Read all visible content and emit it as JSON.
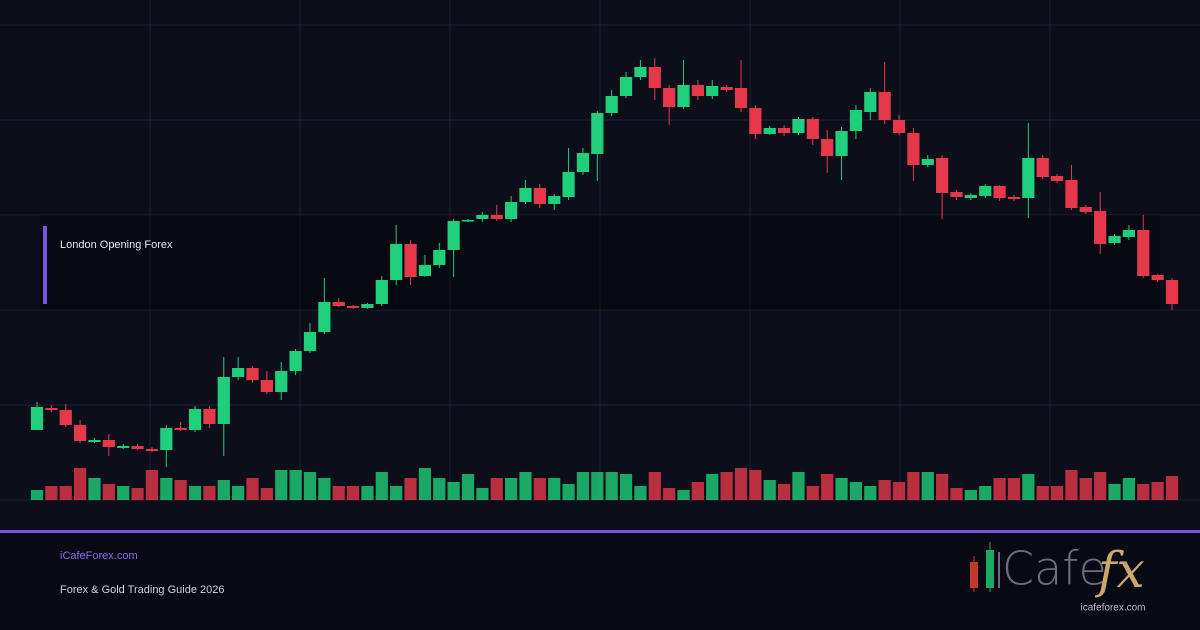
{
  "chart_data": {
    "type": "candlestick",
    "annotation": "London Opening Forex",
    "up_color": "#1fcf7b",
    "down_color": "#e5384a",
    "ylim": [
      0,
      475
    ],
    "volume_lim": [
      0,
      475
    ],
    "open": [
      70,
      92,
      90,
      75,
      58,
      60,
      52,
      54,
      51,
      50,
      72,
      70,
      91,
      76,
      123,
      132,
      120,
      108,
      129,
      149,
      168,
      198,
      194,
      192,
      196,
      220,
      256,
      224,
      235,
      250,
      279,
      281,
      285,
      281,
      298,
      312,
      296,
      303,
      328,
      346,
      387,
      404,
      423,
      433,
      412,
      393,
      415,
      404,
      413,
      412,
      392,
      366,
      372,
      367,
      381,
      361,
      344,
      369,
      388,
      408,
      380,
      367,
      335,
      342,
      308,
      302,
      304,
      314,
      303,
      302,
      342,
      324,
      320,
      293,
      289,
      257,
      263,
      270,
      225,
      220
    ],
    "high": [
      98,
      95,
      96,
      80,
      62,
      66,
      56,
      56,
      53,
      75,
      78,
      94,
      94,
      143,
      143,
      134,
      129,
      138,
      151,
      177,
      222,
      202,
      195,
      197,
      224,
      275,
      260,
      245,
      257,
      281,
      281,
      288,
      295,
      304,
      320,
      316,
      306,
      352,
      352,
      389,
      410,
      428,
      440,
      442,
      415,
      440,
      420,
      420,
      415,
      440,
      395,
      374,
      375,
      383,
      383,
      370,
      373,
      395,
      412,
      438,
      385,
      372,
      345,
      345,
      310,
      307,
      316,
      315,
      305,
      377,
      345,
      326,
      335,
      295,
      308,
      266,
      275,
      285,
      226,
      222
    ],
    "low": [
      70,
      88,
      73,
      57,
      57,
      44,
      51,
      50,
      48,
      33,
      69,
      68,
      72,
      44,
      120,
      117,
      106,
      100,
      125,
      147,
      166,
      193,
      191,
      191,
      194,
      215,
      215,
      223,
      232,
      223,
      278,
      278,
      279,
      278,
      296,
      292,
      290,
      300,
      325,
      319,
      384,
      402,
      420,
      400,
      375,
      391,
      400,
      401,
      408,
      388,
      361,
      365,
      364,
      365,
      355,
      327,
      320,
      361,
      380,
      376,
      365,
      319,
      333,
      281,
      300,
      300,
      302,
      299,
      299,
      282,
      321,
      317,
      290,
      286,
      246,
      255,
      260,
      222,
      218,
      190
    ],
    "close": [
      93,
      90,
      75,
      59,
      60,
      53,
      54,
      51,
      49,
      72,
      70,
      91,
      76,
      123,
      132,
      120,
      108,
      129,
      149,
      168,
      198,
      194,
      192,
      196,
      220,
      256,
      223,
      235,
      250,
      279,
      280,
      285,
      281,
      298,
      312,
      296,
      304,
      328,
      347,
      387,
      404,
      423,
      433,
      412,
      393,
      415,
      404,
      414,
      410,
      392,
      366,
      372,
      367,
      381,
      361,
      344,
      369,
      390,
      408,
      380,
      367,
      335,
      341,
      307,
      303,
      305,
      314,
      302,
      301,
      342,
      323,
      319,
      292,
      288,
      256,
      264,
      270,
      224,
      220,
      196
    ],
    "volume": [
      10,
      14,
      14,
      32,
      22,
      16,
      14,
      12,
      30,
      22,
      20,
      14,
      14,
      20,
      14,
      22,
      12,
      30,
      30,
      28,
      22,
      14,
      14,
      14,
      28,
      14,
      22,
      32,
      22,
      18,
      26,
      12,
      22,
      22,
      28,
      22,
      22,
      16,
      28,
      28,
      28,
      26,
      14,
      28,
      12,
      10,
      18,
      26,
      28,
      32,
      30,
      20,
      16,
      28,
      14,
      26,
      22,
      18,
      14,
      20,
      18,
      28,
      28,
      26,
      12,
      10,
      14,
      22,
      22,
      26,
      14,
      14,
      30,
      22,
      28,
      16,
      22,
      16,
      18,
      24
    ]
  },
  "footer": {
    "site": "iCafeForex.com",
    "subtitle": "Forex & Gold Trading Guide 2026",
    "logo_word": "Cafe",
    "logo_accent": "fx",
    "logo_url": "icafeforex.com"
  }
}
